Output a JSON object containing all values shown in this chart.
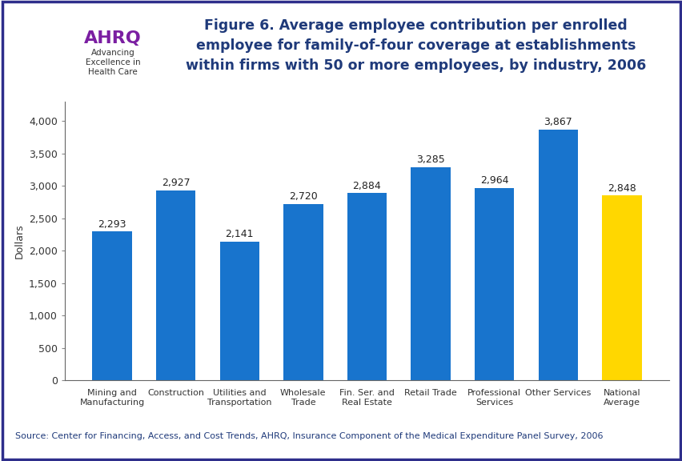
{
  "categories": [
    "Mining and\nManufacturing",
    "Construction",
    "Utilities and\nTransportation",
    "Wholesale\nTrade",
    "Fin. Ser. and\nReal Estate",
    "Retail Trade",
    "Professional\nServices",
    "Other Services",
    "National\nAverage"
  ],
  "values": [
    2293,
    2927,
    2141,
    2720,
    2884,
    3285,
    2964,
    3867,
    2848
  ],
  "bar_colors": [
    "#1874CD",
    "#1874CD",
    "#1874CD",
    "#1874CD",
    "#1874CD",
    "#1874CD",
    "#1874CD",
    "#1874CD",
    "#FFD700"
  ],
  "value_labels": [
    "2,293",
    "2,927",
    "2,141",
    "2,720",
    "2,884",
    "3,285",
    "2,964",
    "3,867",
    "2,848"
  ],
  "title_line1": "Figure 6. Average employee contribution per enrolled",
  "title_line2": "employee for family-of-four coverage at establishments",
  "title_line3": "within firms with 50 or more employees, by industry, 2006",
  "ylabel": "Dollars",
  "ylim": [
    0,
    4300
  ],
  "yticks": [
    0,
    500,
    1000,
    1500,
    2000,
    2500,
    3000,
    3500,
    4000
  ],
  "ytick_labels": [
    "0",
    "500",
    "1,000",
    "1,500",
    "2,000",
    "2,500",
    "3,000",
    "3,500",
    "4,000"
  ],
  "source_text": "Source: Center for Financing, Access, and Cost Trends, AHRQ, Insurance Component of the Medical Expenditure Panel Survey, 2006",
  "title_color": "#1F3A7A",
  "source_color": "#1F3A7A",
  "title_fontsize": 12.5,
  "label_fontsize": 9,
  "ylabel_fontsize": 9,
  "ytick_fontsize": 9,
  "xtick_fontsize": 8,
  "source_fontsize": 8,
  "background_color": "#FFFFFF",
  "outer_border_color": "#2E2E8B",
  "separator_color": "#2E2E8B",
  "hhs_blue": "#1874CD",
  "logo_bg": "#3399CC"
}
